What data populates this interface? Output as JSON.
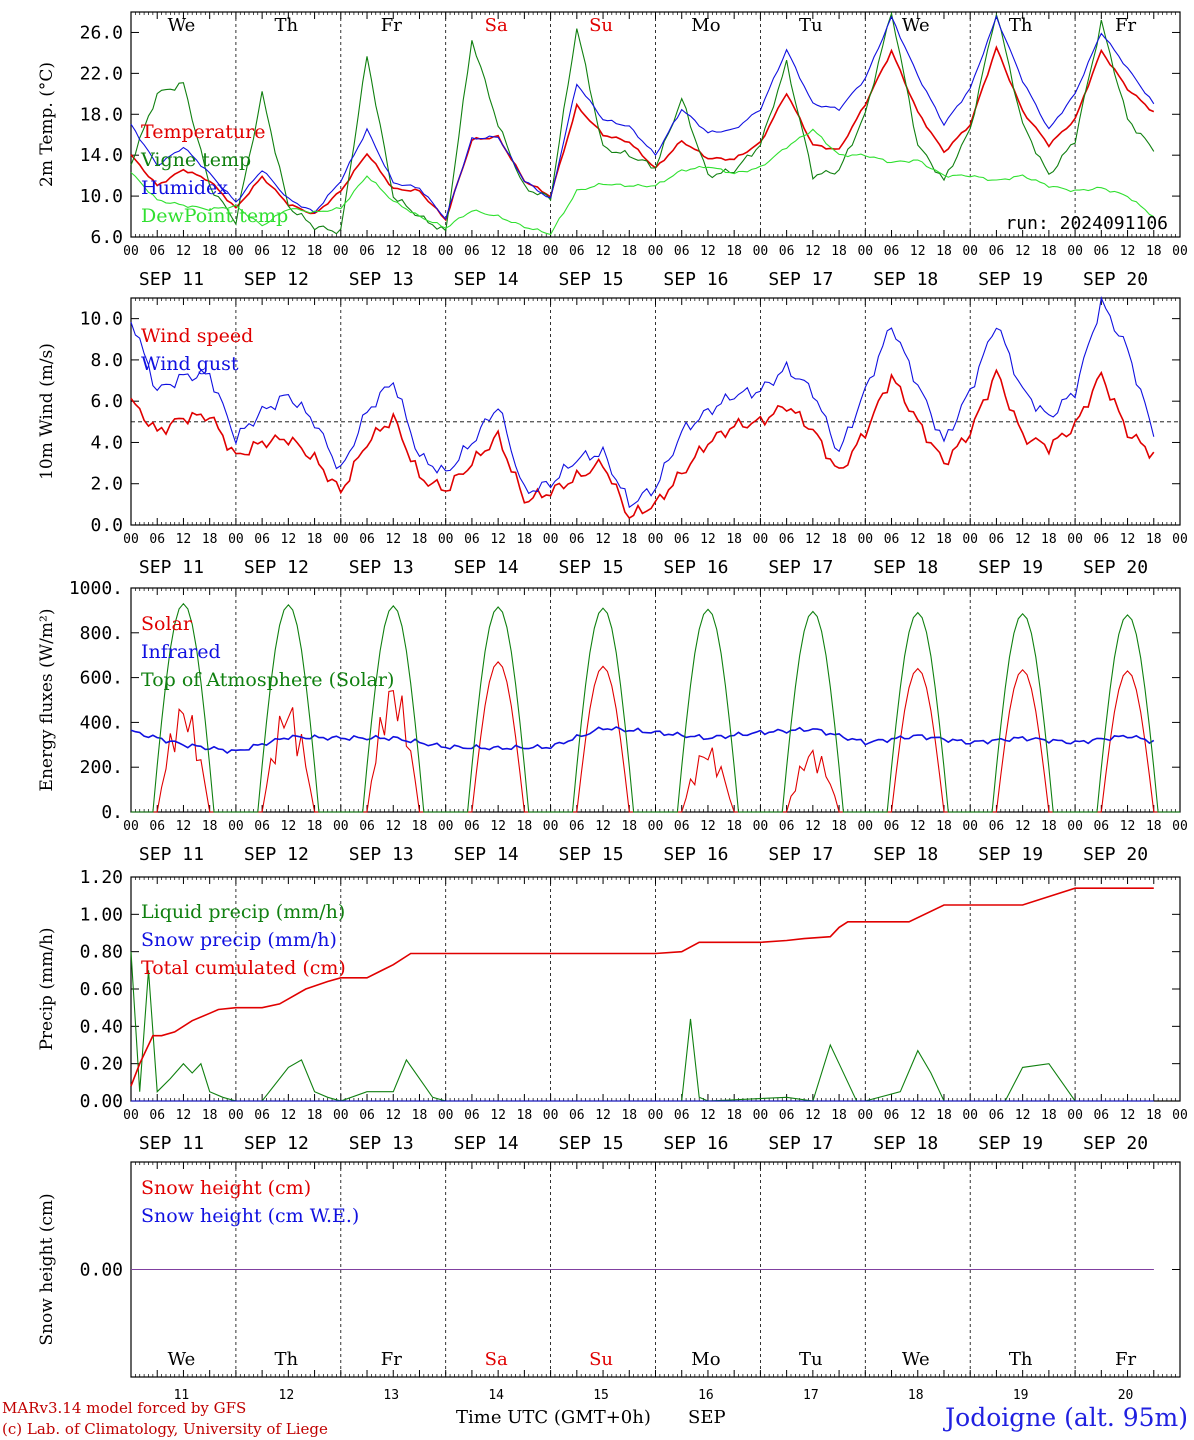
{
  "colors": {
    "red": "#e00000",
    "green": "#108010",
    "blue": "#1010e0",
    "lightgreen": "#30e030",
    "purple": "#8040a0",
    "weekend": "#e00000"
  },
  "days": [
    {
      "dow": "We",
      "date": "SEP 11",
      "num": "11",
      "weekend": false
    },
    {
      "dow": "Th",
      "date": "SEP 12",
      "num": "12",
      "weekend": false
    },
    {
      "dow": "Fr",
      "date": "SEP 13",
      "num": "13",
      "weekend": false
    },
    {
      "dow": "Sa",
      "date": "SEP 14",
      "num": "14",
      "weekend": true
    },
    {
      "dow": "Su",
      "date": "SEP 15",
      "num": "15",
      "weekend": true
    },
    {
      "dow": "Mo",
      "date": "SEP 16",
      "num": "16",
      "weekend": false
    },
    {
      "dow": "Tu",
      "date": "SEP 17",
      "num": "17",
      "weekend": false
    },
    {
      "dow": "We",
      "date": "SEP 18",
      "num": "18",
      "weekend": false
    },
    {
      "dow": "Th",
      "date": "SEP 19",
      "num": "19",
      "weekend": false
    },
    {
      "dow": "Fr",
      "date": "SEP 20",
      "num": "20",
      "weekend": false
    }
  ],
  "hour_labels": [
    "00",
    "06",
    "12",
    "18"
  ],
  "footer": {
    "credit1": "MARv3.14 model forced by GFS",
    "credit2": "(c) Lab. of Climatology, University of Liege",
    "xlabel": "Time UTC (GMT+0h)",
    "month": "SEP",
    "station": "Jodoigne (alt. 95m)"
  },
  "chart_data": [
    {
      "type": "line",
      "ylabel": "2m Temp. (°C)",
      "ylim": [
        6,
        28
      ],
      "yticks": [
        6,
        10,
        14,
        18,
        22,
        26
      ],
      "ytick_labels": [
        "6.0",
        "10.0",
        "14.0",
        "18.0",
        "22.0",
        "26.0"
      ],
      "annotation": "run: 2024091106",
      "x_hours": [
        0,
        6,
        12,
        18,
        24,
        30,
        36,
        42,
        48,
        54,
        60,
        66,
        72,
        78,
        84,
        90,
        96,
        102,
        108,
        114,
        120,
        126,
        132,
        138,
        144,
        150,
        156,
        162,
        168,
        174,
        180,
        186,
        192,
        198,
        204,
        210,
        216,
        222,
        228,
        234
      ],
      "series": [
        {
          "name": "Temperature",
          "color": "red",
          "values": [
            14,
            11,
            12.6,
            11.5,
            8.8,
            11.9,
            9.2,
            8.2,
            10.5,
            14.2,
            10.7,
            10.5,
            7.7,
            15.5,
            15.8,
            11.5,
            10,
            18.8,
            16,
            15.3,
            12.7,
            15.4,
            13.7,
            13.6,
            15.2,
            20.1,
            15,
            14.5,
            19,
            24.2,
            18.2,
            14.3,
            17,
            24.5,
            18.3,
            15,
            17.5,
            24.2,
            20.5,
            18.2
          ]
        },
        {
          "name": "Vigne temp",
          "color": "green",
          "values": [
            13.2,
            20,
            21,
            11,
            7.5,
            20,
            9,
            7,
            6.5,
            23.7,
            10,
            8,
            6.5,
            25.3,
            17,
            10.8,
            9.8,
            26.5,
            14.7,
            14,
            12.8,
            19.5,
            12,
            12.5,
            15,
            23,
            12,
            12.5,
            18,
            28,
            15,
            11.5,
            16.5,
            28,
            17,
            12,
            15.5,
            27,
            17.5,
            14.5
          ]
        },
        {
          "name": "Humidex",
          "color": "blue",
          "values": [
            17,
            13,
            14.8,
            12.2,
            9.4,
            12.6,
            9.7,
            8.4,
            11.5,
            16.5,
            11.3,
            10.8,
            7.8,
            15.6,
            15.8,
            11.5,
            9.7,
            21,
            17.5,
            16.8,
            14,
            18.5,
            16.2,
            16.5,
            18.5,
            24.3,
            19,
            18.5,
            21.5,
            27.5,
            21.8,
            17,
            20.5,
            27.5,
            21.3,
            16.5,
            20,
            26,
            22.5,
            19
          ]
        },
        {
          "name": "DewPoint temp",
          "color": "lightgreen",
          "values": [
            12.3,
            9.6,
            9.1,
            8.7,
            9,
            7.1,
            8.8,
            8.4,
            8.8,
            12,
            9.5,
            8,
            6.9,
            8.6,
            8,
            7,
            6.3,
            10.5,
            11.2,
            11,
            11,
            12.5,
            12.9,
            12.2,
            12.8,
            14.8,
            16.5,
            14,
            14,
            13.3,
            13.5,
            12,
            12,
            11.5,
            12,
            11,
            10.5,
            10.8,
            10,
            8
          ]
        }
      ]
    },
    {
      "type": "line",
      "ylabel": "10m Wind (m/s)",
      "ylim": [
        0,
        11
      ],
      "yticks": [
        0,
        2,
        4,
        6,
        8,
        10
      ],
      "ytick_labels": [
        "0.0",
        "2.0",
        "4.0",
        "6.0",
        "8.0",
        "10.0"
      ],
      "reference_line": 5,
      "x_hours": [
        0,
        6,
        12,
        18,
        24,
        30,
        36,
        42,
        48,
        54,
        60,
        66,
        72,
        78,
        84,
        90,
        96,
        102,
        108,
        114,
        120,
        126,
        132,
        138,
        144,
        150,
        156,
        162,
        168,
        174,
        180,
        186,
        192,
        198,
        204,
        210,
        216,
        222,
        228,
        234
      ],
      "series": [
        {
          "name": "Wind speed",
          "color": "red",
          "values": [
            6,
            4.5,
            5.2,
            5.3,
            3.3,
            4,
            4.2,
            3.2,
            1.6,
            4,
            5.2,
            2.3,
            1.7,
            3,
            4.3,
            1.2,
            1.6,
            2.3,
            3,
            0.4,
            1,
            2.5,
            4,
            4.8,
            5,
            5.8,
            4.6,
            2.5,
            4.5,
            7.2,
            5,
            3,
            4.5,
            7.4,
            4.3,
            3.8,
            4.8,
            7.3,
            4.5,
            3.4
          ]
        },
        {
          "name": "Wind gust",
          "color": "blue",
          "values": [
            10,
            6.5,
            7.2,
            7.3,
            4.2,
            5.5,
            6.3,
            5,
            2.6,
            5.5,
            7,
            3.3,
            2.5,
            4,
            5.8,
            1.6,
            2,
            3.2,
            3.5,
            1,
            1.8,
            4.5,
            5.5,
            6.3,
            6.5,
            7.6,
            6.5,
            3.5,
            6.5,
            9.7,
            6.8,
            4,
            6.5,
            9.8,
            6.5,
            5.2,
            6.5,
            10.8,
            8.5,
            4.4
          ]
        }
      ]
    },
    {
      "type": "line",
      "ylabel": "Energy fluxes (W/m²)",
      "ylim": [
        0,
        1000
      ],
      "yticks": [
        0,
        200,
        400,
        600,
        800,
        1000
      ],
      "ytick_labels": [
        "0.",
        "200.",
        "400.",
        "600.",
        "800.",
        "1000."
      ],
      "toa_peaks": [
        930,
        925,
        920,
        915,
        910,
        905,
        895,
        890,
        885,
        880
      ],
      "solar_peaks": [
        500,
        500,
        600,
        670,
        650,
        300,
        290,
        640,
        635,
        630
      ],
      "series": [
        {
          "name": "Solar",
          "color": "red"
        },
        {
          "name": "Infrared",
          "color": "blue",
          "x_hours": [
            0,
            12,
            24,
            36,
            48,
            60,
            72,
            84,
            96,
            108,
            120,
            132,
            144,
            156,
            168,
            180,
            192,
            204,
            216,
            228,
            234
          ],
          "values": [
            360,
            300,
            270,
            335,
            330,
            330,
            290,
            285,
            290,
            375,
            355,
            330,
            355,
            370,
            310,
            340,
            310,
            330,
            310,
            340,
            315
          ]
        },
        {
          "name": "Top of Atmosphere (Solar)",
          "color": "green"
        }
      ]
    },
    {
      "type": "line",
      "ylabel": "Precip (mm/h)",
      "ylim": [
        0,
        1.2
      ],
      "yticks": [
        0,
        0.2,
        0.4,
        0.6,
        0.8,
        1.0,
        1.2
      ],
      "ytick_labels": [
        "0.00",
        "0.20",
        "0.40",
        "0.60",
        "0.80",
        "1.00",
        "1.20"
      ],
      "series": [
        {
          "name": "Liquid precip (mm/h)",
          "color": "green",
          "x_hours": [
            0,
            2,
            4,
            6,
            9,
            12,
            14,
            16,
            18,
            21,
            24,
            30,
            36,
            39,
            42,
            45,
            48,
            54,
            60,
            63,
            66,
            69,
            72,
            84,
            120,
            126,
            128,
            130,
            132,
            150,
            156,
            160,
            162,
            166,
            168,
            176,
            180,
            183,
            186,
            200,
            204,
            210,
            213,
            216,
            234
          ],
          "values": [
            0.8,
            0.05,
            0.7,
            0.05,
            0.12,
            0.2,
            0.15,
            0.2,
            0.05,
            0.02,
            0,
            0,
            0.18,
            0.22,
            0.05,
            0.02,
            0,
            0.05,
            0.05,
            0.22,
            0.12,
            0.02,
            0,
            0,
            0,
            0,
            0.44,
            0.02,
            0,
            0.02,
            0,
            0.3,
            0.2,
            0,
            0,
            0.05,
            0.27,
            0.15,
            0,
            0,
            0.18,
            0.2,
            0.1,
            0,
            0
          ]
        },
        {
          "name": "Snow precip (mm/h)",
          "color": "blue",
          "x_hours": [
            0,
            234
          ],
          "values": [
            0,
            0
          ]
        },
        {
          "name": "Total cumulated (cm)",
          "color": "red",
          "x_hours": [
            0,
            2,
            5,
            7,
            10,
            14,
            18,
            20,
            24,
            30,
            34,
            40,
            45,
            48,
            54,
            60,
            64,
            72,
            96,
            120,
            126,
            130,
            144,
            150,
            154,
            160,
            162,
            164,
            168,
            174,
            178,
            186,
            192,
            198,
            204,
            208,
            216,
            234
          ],
          "values": [
            0.08,
            0.2,
            0.35,
            0.35,
            0.37,
            0.43,
            0.47,
            0.49,
            0.5,
            0.5,
            0.52,
            0.6,
            0.64,
            0.66,
            0.66,
            0.73,
            0.79,
            0.79,
            0.79,
            0.79,
            0.8,
            0.85,
            0.85,
            0.86,
            0.87,
            0.88,
            0.93,
            0.96,
            0.96,
            0.96,
            0.96,
            1.05,
            1.05,
            1.05,
            1.05,
            1.08,
            1.14,
            1.14
          ]
        }
      ]
    },
    {
      "type": "line",
      "ylabel": "Snow height (cm)",
      "ylim": [
        -1,
        1
      ],
      "yticks": [
        0
      ],
      "ytick_labels": [
        "0.00"
      ],
      "series": [
        {
          "name": "Snow height (cm)",
          "color": "red",
          "x_hours": [
            0,
            234
          ],
          "values": [
            0,
            0
          ]
        },
        {
          "name": "Snow height (cm W.E.)",
          "color": "blue",
          "x_hours": [
            0,
            234
          ],
          "values": [
            0,
            0
          ]
        }
      ]
    }
  ]
}
